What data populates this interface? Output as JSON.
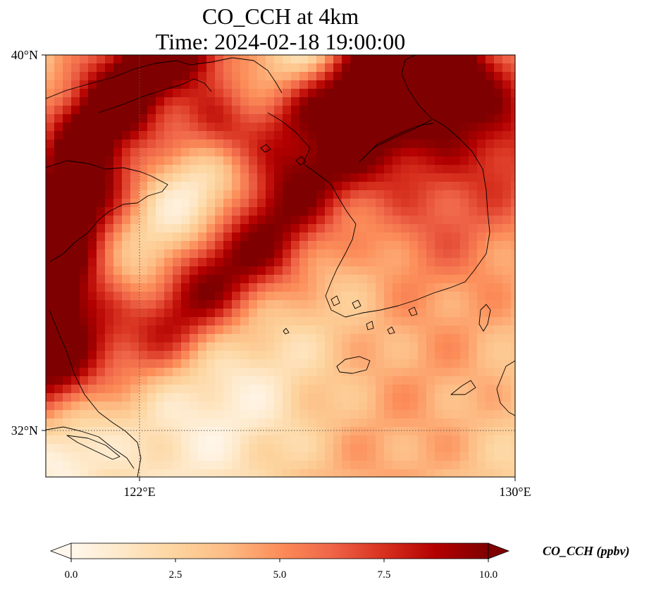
{
  "map": {
    "title_line1": "CO_CCH at 4km",
    "title_line2": "Time: 2024-02-18 19:00:00",
    "lat_labels": [
      "40°N",
      "32°N"
    ],
    "lon_labels": [
      "122°E",
      "130°E"
    ],
    "extent": {
      "lon_min": 120,
      "lon_max": 130,
      "lat_min": 31,
      "lat_max": 40
    },
    "gridlines": {
      "lon": [
        122
      ],
      "lat": [
        32
      ]
    },
    "colormap": "OrRd"
  },
  "colorbar": {
    "label": "CO_CCH (ppbv)",
    "ticks": [
      "0.0",
      "2.5",
      "5.0",
      "7.5",
      "10.0"
    ],
    "vmin": 0,
    "vmax": 10,
    "extend": "both"
  }
}
